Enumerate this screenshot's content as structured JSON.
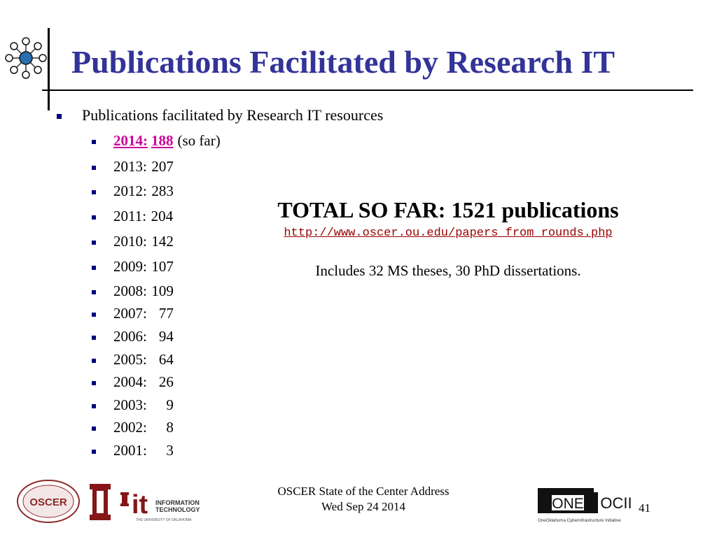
{
  "slide": {
    "title": "Publications Facilitated by Research IT",
    "main_bullet": "Publications facilitated by Research IT resources",
    "years": [
      {
        "year": "2014:",
        "count": "188",
        "highlight": true,
        "note": "(so far)"
      },
      {
        "year": "2013:",
        "count": "207"
      },
      {
        "year": "2012:",
        "count": "283"
      },
      {
        "year": "2011:",
        "count": "204"
      },
      {
        "year": "2010:",
        "count": "142"
      },
      {
        "year": "2009:",
        "count": "107"
      },
      {
        "year": "2008:",
        "count": "109"
      },
      {
        "year": "2007:",
        "count": "77"
      },
      {
        "year": "2006:",
        "count": "94"
      },
      {
        "year": "2005:",
        "count": "64"
      },
      {
        "year": "2004:",
        "count": "26"
      },
      {
        "year": "2003:",
        "count": "9"
      },
      {
        "year": "2002:",
        "count": "8"
      },
      {
        "year": "2001:",
        "count": "3"
      }
    ],
    "total": "TOTAL SO FAR: 1521 publications",
    "url": "http://www.oscer.ou.edu/papers_from_rounds.php",
    "includes": "Includes 32 MS theses, 30 PhD dissertations."
  },
  "footer": {
    "line1": "OSCER State of the Center Address",
    "line2": "Wed Sep 24 2014",
    "page_number": "41",
    "logos": {
      "oscer_seal_text": "OSCER",
      "it_logo_line1": "INFORMATION",
      "it_logo_line2": "TECHNOLOGY",
      "it_logo_line3": "THE UNIVERSITY OF OKLAHOMA",
      "oneocii_one": "ONE",
      "oneocii_ocii": "OCII",
      "oneocii_caption": "OneOklahoma Cyberinfrastructure Initiative"
    }
  },
  "colors": {
    "title": "#333399",
    "bullet": "#000080",
    "highlight": "#cc0099",
    "url": "#990000",
    "ou_crimson": "#841617"
  }
}
